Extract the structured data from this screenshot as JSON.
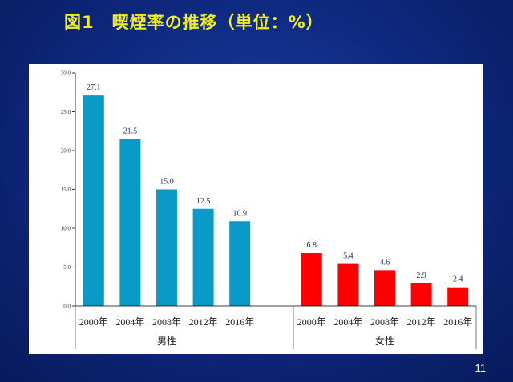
{
  "slide": {
    "title": "図1　喫煙率の推移（単位：%）",
    "page_number": "11"
  },
  "colors": {
    "male": "#0a9ac7",
    "female": "#ff0000",
    "title": "#f2ef1c",
    "value_label": "#1a2e6b"
  },
  "chart_data": {
    "type": "bar",
    "title": "図1　喫煙率の推移（単位：%）",
    "ylim": [
      0,
      30
    ],
    "yticks": [
      "0.0",
      "5.0",
      "10.0",
      "15.0",
      "20.0",
      "25.0",
      "30.0"
    ],
    "grid": false,
    "groups": [
      {
        "name": "男性",
        "color": "#0a9ac7",
        "categories": [
          "2000年",
          "2004年",
          "2008年",
          "2012年",
          "2016年"
        ],
        "values": [
          27.1,
          21.5,
          15.0,
          12.5,
          10.9
        ],
        "labels": [
          "27.1",
          "21.5",
          "15.0",
          "12.5",
          "10.9"
        ]
      },
      {
        "name": "女性",
        "color": "#ff0000",
        "categories": [
          "2000年",
          "2004年",
          "2008年",
          "2012年",
          "2016年"
        ],
        "values": [
          6.8,
          5.4,
          4.6,
          2.9,
          2.4
        ],
        "labels": [
          "6.8",
          "5.4",
          "4.6",
          "2.9",
          "2.4"
        ]
      }
    ]
  }
}
